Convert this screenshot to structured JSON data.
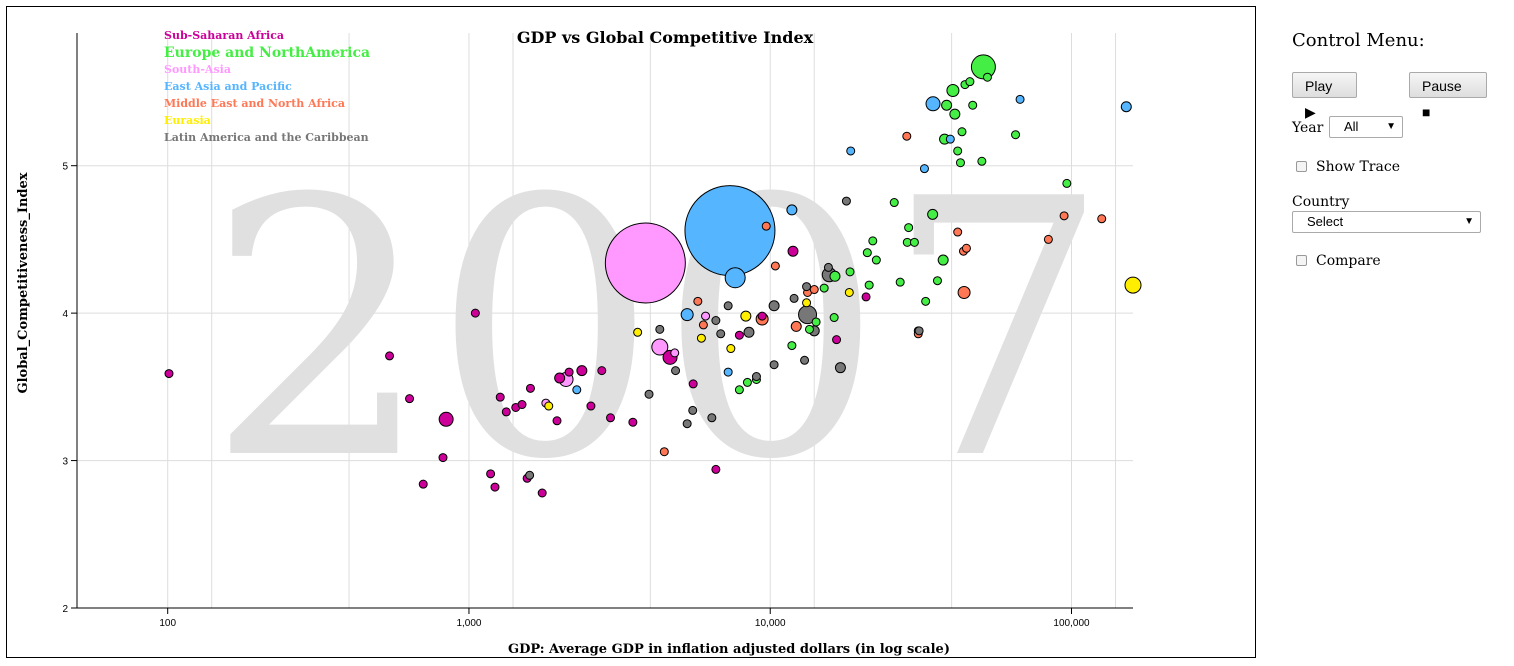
{
  "control_menu": {
    "title": "Control Menu:",
    "play_label": "Play ▶",
    "pause_label": "Pause ■",
    "year_label": "Year",
    "year_value": "All",
    "show_trace_label": "Show Trace",
    "country_label": "Country",
    "country_value": "Select",
    "compare_label": "Compare"
  },
  "chart_data": {
    "type": "scatter",
    "title": "GDP vs Global Competitive Index",
    "xlabel": "GDP: Average GDP in inflation adjusted dollars (in log scale)",
    "ylabel": "Global_Competitiveness_Index",
    "xscale": "log",
    "xlim": [
      50,
      160000
    ],
    "ylim": [
      2,
      5.9
    ],
    "xticks": [
      100,
      1000,
      10000,
      100000
    ],
    "xtick_labels": [
      "100",
      "1,000",
      "10,000",
      "100,000"
    ],
    "yticks": [
      2,
      3,
      4,
      5
    ],
    "ytick_labels": [
      "2",
      "3",
      "4",
      "5"
    ],
    "grid": true,
    "year_watermark": "2007",
    "legend_position": "top-left",
    "series": [
      {
        "name": "Sub-Saharan Africa",
        "color": "#cc0099",
        "points": [
          [
            101,
            3.59,
            4
          ],
          [
            545,
            3.71,
            4
          ],
          [
            635,
            3.42,
            4
          ],
          [
            705,
            2.84,
            4
          ],
          [
            820,
            3.02,
            4
          ],
          [
            840,
            3.28,
            7
          ],
          [
            1050,
            4.0,
            4
          ],
          [
            1180,
            2.91,
            4
          ],
          [
            1220,
            2.82,
            4
          ],
          [
            1270,
            3.43,
            4
          ],
          [
            1330,
            3.33,
            4
          ],
          [
            1430,
            3.36,
            4
          ],
          [
            1500,
            3.38,
            4
          ],
          [
            1560,
            2.88,
            4
          ],
          [
            1600,
            3.49,
            4
          ],
          [
            1750,
            2.78,
            4
          ],
          [
            1960,
            3.27,
            4
          ],
          [
            2000,
            3.56,
            5
          ],
          [
            2150,
            3.6,
            4
          ],
          [
            2370,
            3.61,
            5
          ],
          [
            2540,
            3.37,
            4
          ],
          [
            2760,
            3.61,
            4
          ],
          [
            2950,
            3.29,
            4
          ],
          [
            3500,
            3.26,
            4
          ],
          [
            4650,
            3.7,
            7
          ],
          [
            5550,
            3.52,
            4
          ],
          [
            6600,
            2.94,
            4
          ],
          [
            7900,
            3.85,
            4
          ],
          [
            9400,
            3.98,
            4
          ],
          [
            11900,
            4.42,
            5
          ],
          [
            16600,
            3.82,
            4
          ],
          [
            20800,
            4.11,
            4
          ]
        ]
      },
      {
        "name": "Europe and NorthAmerica",
        "color": "#44ee44",
        "points": [
          [
            7900,
            3.48,
            4
          ],
          [
            8400,
            3.53,
            4
          ],
          [
            9000,
            3.55,
            4
          ],
          [
            11800,
            3.78,
            4
          ],
          [
            13500,
            3.89,
            4
          ],
          [
            14200,
            3.94,
            4
          ],
          [
            16300,
            3.97,
            4
          ],
          [
            15100,
            4.17,
            4
          ],
          [
            16400,
            4.25,
            5
          ],
          [
            18400,
            4.28,
            4
          ],
          [
            21000,
            4.41,
            4
          ],
          [
            21300,
            4.19,
            4
          ],
          [
            21900,
            4.49,
            4
          ],
          [
            22500,
            4.36,
            4
          ],
          [
            25800,
            4.75,
            4
          ],
          [
            27000,
            4.21,
            4
          ],
          [
            28500,
            4.48,
            4
          ],
          [
            28800,
            4.58,
            4
          ],
          [
            30100,
            4.48,
            4
          ],
          [
            31000,
            3.88,
            4
          ],
          [
            32800,
            4.08,
            4
          ],
          [
            34600,
            4.67,
            5
          ],
          [
            35900,
            4.22,
            4
          ],
          [
            37500,
            4.36,
            5
          ],
          [
            37900,
            5.18,
            5
          ],
          [
            38500,
            5.41,
            5
          ],
          [
            40400,
            5.51,
            6
          ],
          [
            41900,
            5.1,
            4
          ],
          [
            41000,
            5.35,
            5
          ],
          [
            42800,
            5.02,
            4
          ],
          [
            43300,
            5.23,
            4
          ],
          [
            44300,
            5.55,
            4
          ],
          [
            46000,
            5.57,
            4
          ],
          [
            47000,
            5.41,
            4
          ],
          [
            50400,
            5.03,
            4
          ],
          [
            51000,
            5.67,
            12
          ],
          [
            52600,
            5.6,
            4
          ],
          [
            65200,
            5.21,
            4
          ],
          [
            96500,
            4.88,
            4
          ]
        ]
      },
      {
        "name": "South-Asia",
        "color": "#ff99ff",
        "points": [
          [
            1800,
            3.39,
            4
          ],
          [
            2100,
            3.55,
            7
          ],
          [
            3850,
            4.34,
            40
          ],
          [
            4300,
            3.77,
            8
          ],
          [
            4820,
            3.73,
            4
          ],
          [
            6100,
            3.98,
            4
          ]
        ]
      },
      {
        "name": "East Asia and Pacific",
        "color": "#55b5ff",
        "points": [
          [
            2280,
            3.48,
            4
          ],
          [
            5300,
            3.99,
            6
          ],
          [
            7250,
            3.6,
            4
          ],
          [
            7350,
            4.56,
            45
          ],
          [
            7650,
            4.24,
            10
          ],
          [
            11800,
            4.7,
            5
          ],
          [
            18500,
            5.1,
            4
          ],
          [
            32500,
            4.98,
            4
          ],
          [
            34700,
            5.42,
            7
          ],
          [
            39600,
            5.18,
            4
          ],
          [
            67500,
            5.45,
            4
          ],
          [
            152000,
            5.4,
            5
          ]
        ]
      },
      {
        "name": "Middle East and North Africa",
        "color": "#ff7755",
        "points": [
          [
            4450,
            3.06,
            4
          ],
          [
            5750,
            4.08,
            4
          ],
          [
            6000,
            3.92,
            4
          ],
          [
            9400,
            3.96,
            6
          ],
          [
            9700,
            4.59,
            4
          ],
          [
            10400,
            4.32,
            4
          ],
          [
            12200,
            3.91,
            5
          ],
          [
            13300,
            4.14,
            4
          ],
          [
            14000,
            4.16,
            4
          ],
          [
            28400,
            5.2,
            4
          ],
          [
            31000,
            3.86,
            4
          ],
          [
            41900,
            4.55,
            4
          ],
          [
            43800,
            4.42,
            4
          ],
          [
            44000,
            4.14,
            6
          ],
          [
            44800,
            4.44,
            4
          ],
          [
            83800,
            4.5,
            4
          ],
          [
            94500,
            4.66,
            4
          ],
          [
            126000,
            4.64,
            4
          ]
        ]
      },
      {
        "name": "Eurasia",
        "color": "#ffee00",
        "points": [
          [
            1840,
            3.37,
            4
          ],
          [
            3630,
            3.87,
            4
          ],
          [
            5910,
            3.83,
            4
          ],
          [
            7400,
            3.76,
            4
          ],
          [
            8300,
            3.98,
            5
          ],
          [
            13200,
            4.07,
            4
          ],
          [
            18300,
            4.14,
            4
          ],
          [
            160000,
            4.19,
            8
          ]
        ]
      },
      {
        "name": "Latin America and the Caribbean",
        "color": "#777777",
        "points": [
          [
            1590,
            2.9,
            4
          ],
          [
            3960,
            3.45,
            4
          ],
          [
            4300,
            3.89,
            4
          ],
          [
            4850,
            3.61,
            4
          ],
          [
            5300,
            3.25,
            4
          ],
          [
            5530,
            3.34,
            4
          ],
          [
            6400,
            3.29,
            4
          ],
          [
            6600,
            3.95,
            4
          ],
          [
            6850,
            3.86,
            4
          ],
          [
            7250,
            4.05,
            4
          ],
          [
            8500,
            3.87,
            5
          ],
          [
            9000,
            3.57,
            4
          ],
          [
            10300,
            3.65,
            4
          ],
          [
            10300,
            4.05,
            5
          ],
          [
            12000,
            4.1,
            4
          ],
          [
            13000,
            3.68,
            4
          ],
          [
            13200,
            4.18,
            4
          ],
          [
            13300,
            3.99,
            9
          ],
          [
            14000,
            3.88,
            5
          ],
          [
            15600,
            4.31,
            4
          ],
          [
            15700,
            4.26,
            7
          ],
          [
            17100,
            3.63,
            5
          ],
          [
            17900,
            4.76,
            4
          ],
          [
            31200,
            3.88,
            4
          ]
        ]
      }
    ]
  }
}
